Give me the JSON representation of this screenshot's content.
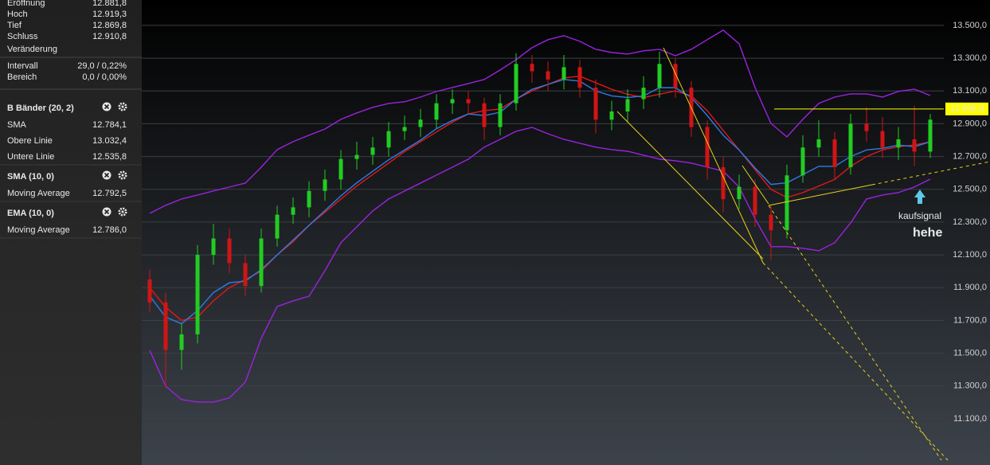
{
  "sidebar": {
    "quote": [
      {
        "label": "Eröffnung",
        "value": "12.881,8"
      },
      {
        "label": "Hoch",
        "value": "12.919,3"
      },
      {
        "label": "Tief",
        "value": "12.869,8"
      },
      {
        "label": "Schluss",
        "value": "12.910,8"
      },
      {
        "label": "Veränderung"
      }
    ],
    "ranges": [
      {
        "label": "Intervall",
        "value": "29,0 / 0,22%",
        "color": "#2fa82f"
      },
      {
        "label": "Bereich",
        "value": "0,0 / 0,00%",
        "color": "#2fa82f"
      }
    ],
    "indicators": [
      {
        "title": "B Bänder (20, 2)",
        "lines": [
          {
            "label": "SMA",
            "value": "12.784,1",
            "color": "#a335e0"
          },
          {
            "label": "Obere Linie",
            "value": "13.032,4",
            "color": "#a335e0"
          },
          {
            "label": "Untere Linie",
            "value": "12.535,8",
            "color": "#a335e0"
          }
        ]
      },
      {
        "title": "SMA (10, 0)",
        "lines": [
          {
            "label": "Moving Average",
            "value": "12.792,5",
            "color": "#e01818"
          }
        ]
      },
      {
        "title": "EMA (10, 0)",
        "lines": [
          {
            "label": "Moving Average",
            "value": "12.786,0",
            "color": "#2d7ce6"
          }
        ]
      }
    ]
  },
  "chart_data": {
    "type": "candlestick",
    "up_color": "#22cc22",
    "down_color": "#d01515",
    "ylim": [
      10818,
      13655
    ],
    "yticks": [
      {
        "value": 13500,
        "label": "13.500,0"
      },
      {
        "value": 13300,
        "label": "13.300,0"
      },
      {
        "value": 13100,
        "label": "13.100,0"
      },
      {
        "value": 12900,
        "label": "12.900,0"
      },
      {
        "value": 12700,
        "label": "12.700,0"
      },
      {
        "value": 12500,
        "label": "12.500,0"
      },
      {
        "value": 12300,
        "label": "12.300,0"
      },
      {
        "value": 12100,
        "label": "12.100,0"
      },
      {
        "value": 11900,
        "label": "11.900,0"
      },
      {
        "value": 11700,
        "label": "11.700,0"
      },
      {
        "value": 11500,
        "label": "11.500,0"
      },
      {
        "value": 11300,
        "label": "11.300,0"
      },
      {
        "value": 11100,
        "label": "11.100,0"
      }
    ],
    "grid": true,
    "open": [
      11950,
      11810,
      11520,
      11615,
      12100,
      12200,
      12050,
      11910,
      12200,
      12345,
      12390,
      12490,
      12560,
      12685,
      12710,
      12755,
      12855,
      12880,
      12925,
      13025,
      13050,
      13025,
      12880,
      13025,
      13265,
      13220,
      13170,
      13245,
      13120,
      12925,
      12975,
      13050,
      13120,
      13265,
      13120,
      12880,
      12635,
      12440,
      12515,
      12345,
      12250,
      12585,
      12755,
      12805,
      12635,
      12900,
      12855,
      12755,
      12805,
      12730
    ],
    "high": [
      12010,
      11870,
      11680,
      12160,
      12290,
      12260,
      12100,
      12260,
      12400,
      12450,
      12550,
      12620,
      12740,
      12790,
      12820,
      12910,
      12950,
      12990,
      13080,
      13110,
      13100,
      13060,
      13080,
      13330,
      13320,
      13280,
      13320,
      13290,
      13170,
      13040,
      13110,
      13190,
      13340,
      13300,
      13160,
      12920,
      12700,
      12590,
      12560,
      12400,
      12650,
      12830,
      12920,
      12850,
      12960,
      13000,
      12940,
      12880,
      13010,
      12960
    ],
    "low": [
      11750,
      11290,
      11400,
      11560,
      12040,
      11990,
      11850,
      11870,
      12150,
      12290,
      12330,
      12430,
      12500,
      12620,
      12650,
      12700,
      12800,
      12820,
      12870,
      12960,
      12960,
      12800,
      12830,
      12980,
      13150,
      13100,
      13110,
      13060,
      12840,
      12860,
      12910,
      12990,
      13060,
      13060,
      12820,
      12560,
      12360,
      12380,
      12270,
      12070,
      12200,
      12540,
      12700,
      12560,
      12590,
      12790,
      12690,
      12680,
      12640,
      12690
    ],
    "close": [
      11810,
      11520,
      11615,
      12100,
      12200,
      12050,
      11910,
      12200,
      12345,
      12390,
      12490,
      12560,
      12685,
      12710,
      12755,
      12855,
      12880,
      12925,
      13025,
      13050,
      13025,
      12880,
      13025,
      13265,
      13220,
      13170,
      13245,
      13120,
      12925,
      12975,
      13050,
      13120,
      13265,
      13120,
      12880,
      12635,
      12440,
      12515,
      12345,
      12250,
      12585,
      12755,
      12805,
      12635,
      12900,
      12855,
      12755,
      12805,
      12730,
      12925
    ],
    "lines": [
      {
        "color": "#9b22e0",
        "values": [
          12353,
          12402,
          12441,
          12465,
          12490,
          12514,
          12538,
          12635,
          12742,
          12791,
          12830,
          12868,
          12927,
          12966,
          13000,
          13024,
          13034,
          13063,
          13097,
          13121,
          13145,
          13170,
          13228,
          13291,
          13364,
          13413,
          13437,
          13403,
          13354,
          13335,
          13325,
          13345,
          13354,
          13315,
          13354,
          13413,
          13471,
          13388,
          13121,
          12902,
          12820,
          12927,
          13024,
          13063,
          13082,
          13082,
          13063,
          13097,
          13111,
          13072
        ]
      },
      {
        "color": "#9b22e0",
        "values": [
          11518,
          11299,
          11217,
          11202,
          11202,
          11227,
          11324,
          11591,
          11785,
          11819,
          11848,
          12004,
          12174,
          12271,
          12368,
          12441,
          12490,
          12538,
          12587,
          12635,
          12684,
          12757,
          12805,
          12854,
          12878,
          12839,
          12805,
          12781,
          12757,
          12742,
          12732,
          12708,
          12684,
          12674,
          12660,
          12635,
          12611,
          12514,
          12320,
          12150,
          12150,
          12140,
          12125,
          12174,
          12295,
          12441,
          12465,
          12480,
          12514,
          12562
        ]
      },
      {
        "color": "#e01818",
        "values": [
          11900,
          11780,
          11700,
          11720,
          11820,
          11900,
          11950,
          12000,
          12100,
          12180,
          12280,
          12360,
          12440,
          12520,
          12590,
          12660,
          12730,
          12790,
          12850,
          12910,
          12960,
          12980,
          12990,
          13050,
          13100,
          13140,
          13180,
          13190,
          13150,
          13110,
          13080,
          13060,
          13080,
          13100,
          13070,
          12980,
          12860,
          12740,
          12620,
          12500,
          12450,
          12480,
          12520,
          12560,
          12640,
          12700,
          12740,
          12760,
          12770,
          12790
        ]
      },
      {
        "color": "#2d7ce6",
        "values": [
          11850,
          11720,
          11680,
          11760,
          11870,
          11930,
          11940,
          12010,
          12100,
          12190,
          12280,
          12370,
          12460,
          12540,
          12610,
          12680,
          12740,
          12800,
          12870,
          12920,
          12960,
          12950,
          12970,
          13050,
          13110,
          13140,
          13170,
          13160,
          13100,
          13070,
          13060,
          13070,
          13120,
          13120,
          13060,
          12950,
          12830,
          12740,
          12630,
          12530,
          12540,
          12590,
          12640,
          12640,
          12700,
          12740,
          12750,
          12770,
          12760,
          12790
        ]
      }
    ],
    "last_price": {
      "value": 12990.3,
      "label": "12.990,3",
      "color": "#ffff00"
    },
    "annotations": [
      {
        "text": "kaufsignal",
        "color": "#e8e8e8"
      },
      {
        "text": "hehe",
        "color": "#ff8c1a"
      }
    ]
  }
}
